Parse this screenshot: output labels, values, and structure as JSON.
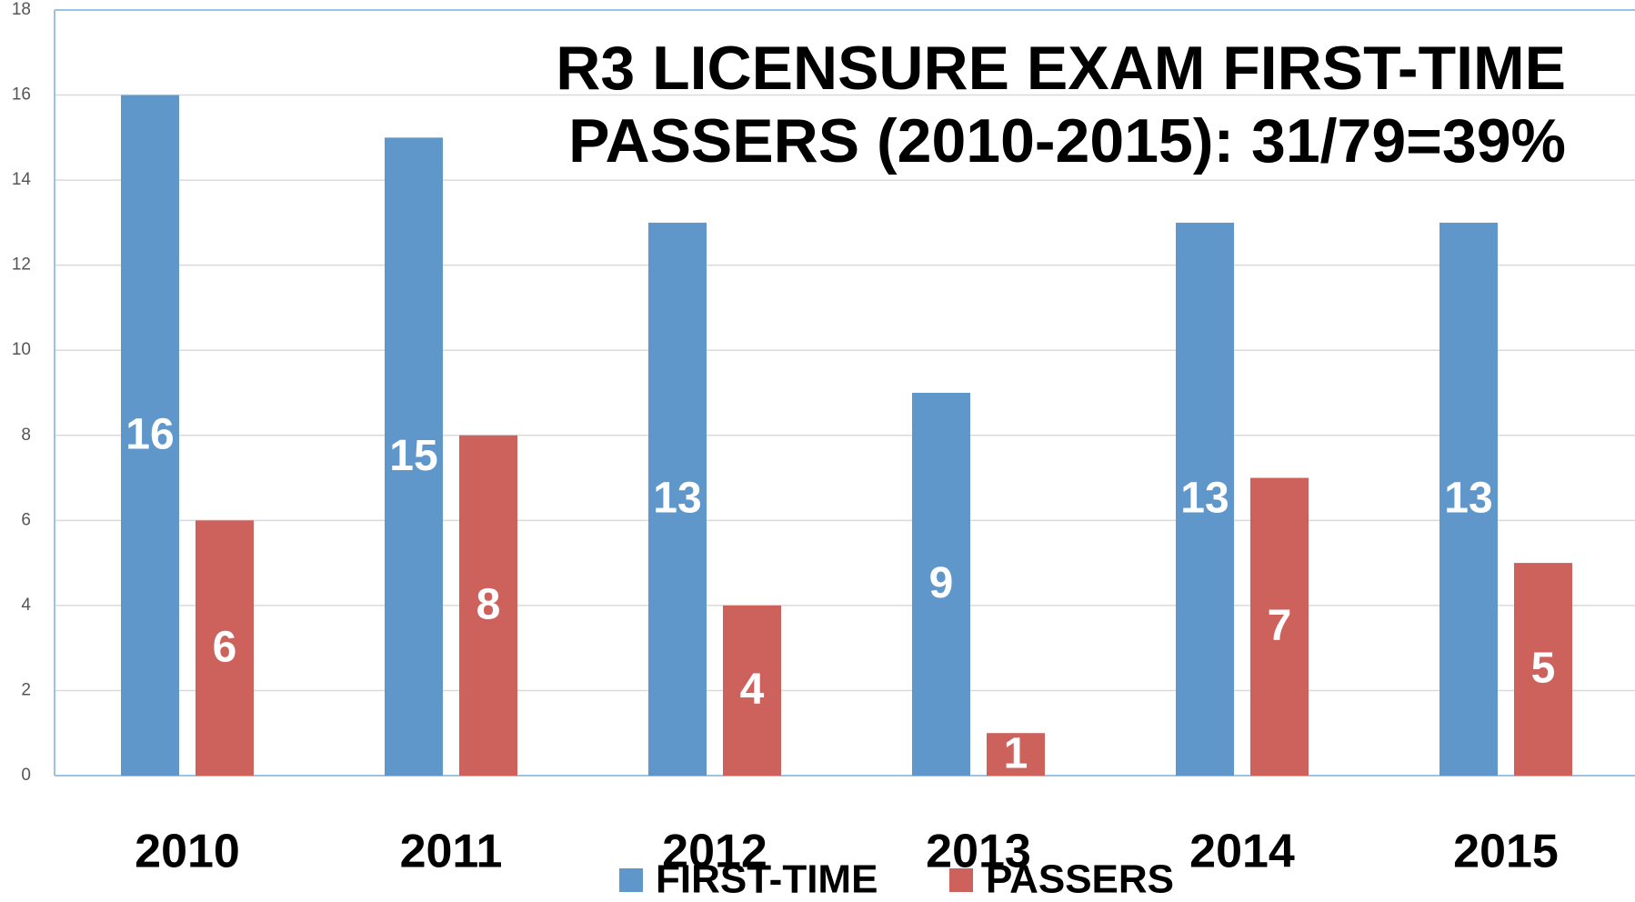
{
  "chart_data": {
    "type": "bar",
    "title": [
      "R3 LICENSURE EXAM FIRST-TIME",
      "PASSERS (2010-2015): 31/79=39%"
    ],
    "categories": [
      "2010",
      "2011",
      "2012",
      "2013",
      "2014",
      "2015"
    ],
    "series": [
      {
        "name": "FIRST-TIME",
        "color": "#6097cb",
        "values": [
          16,
          15,
          13,
          9,
          13,
          13
        ]
      },
      {
        "name": "PASSERS",
        "color": "#cd625d",
        "values": [
          6,
          8,
          4,
          1,
          7,
          5
        ]
      }
    ],
    "ylim": [
      0,
      18
    ],
    "yticks": [
      0,
      2,
      4,
      6,
      8,
      10,
      12,
      14,
      16,
      18
    ],
    "grid": true,
    "legend": "bottom"
  }
}
